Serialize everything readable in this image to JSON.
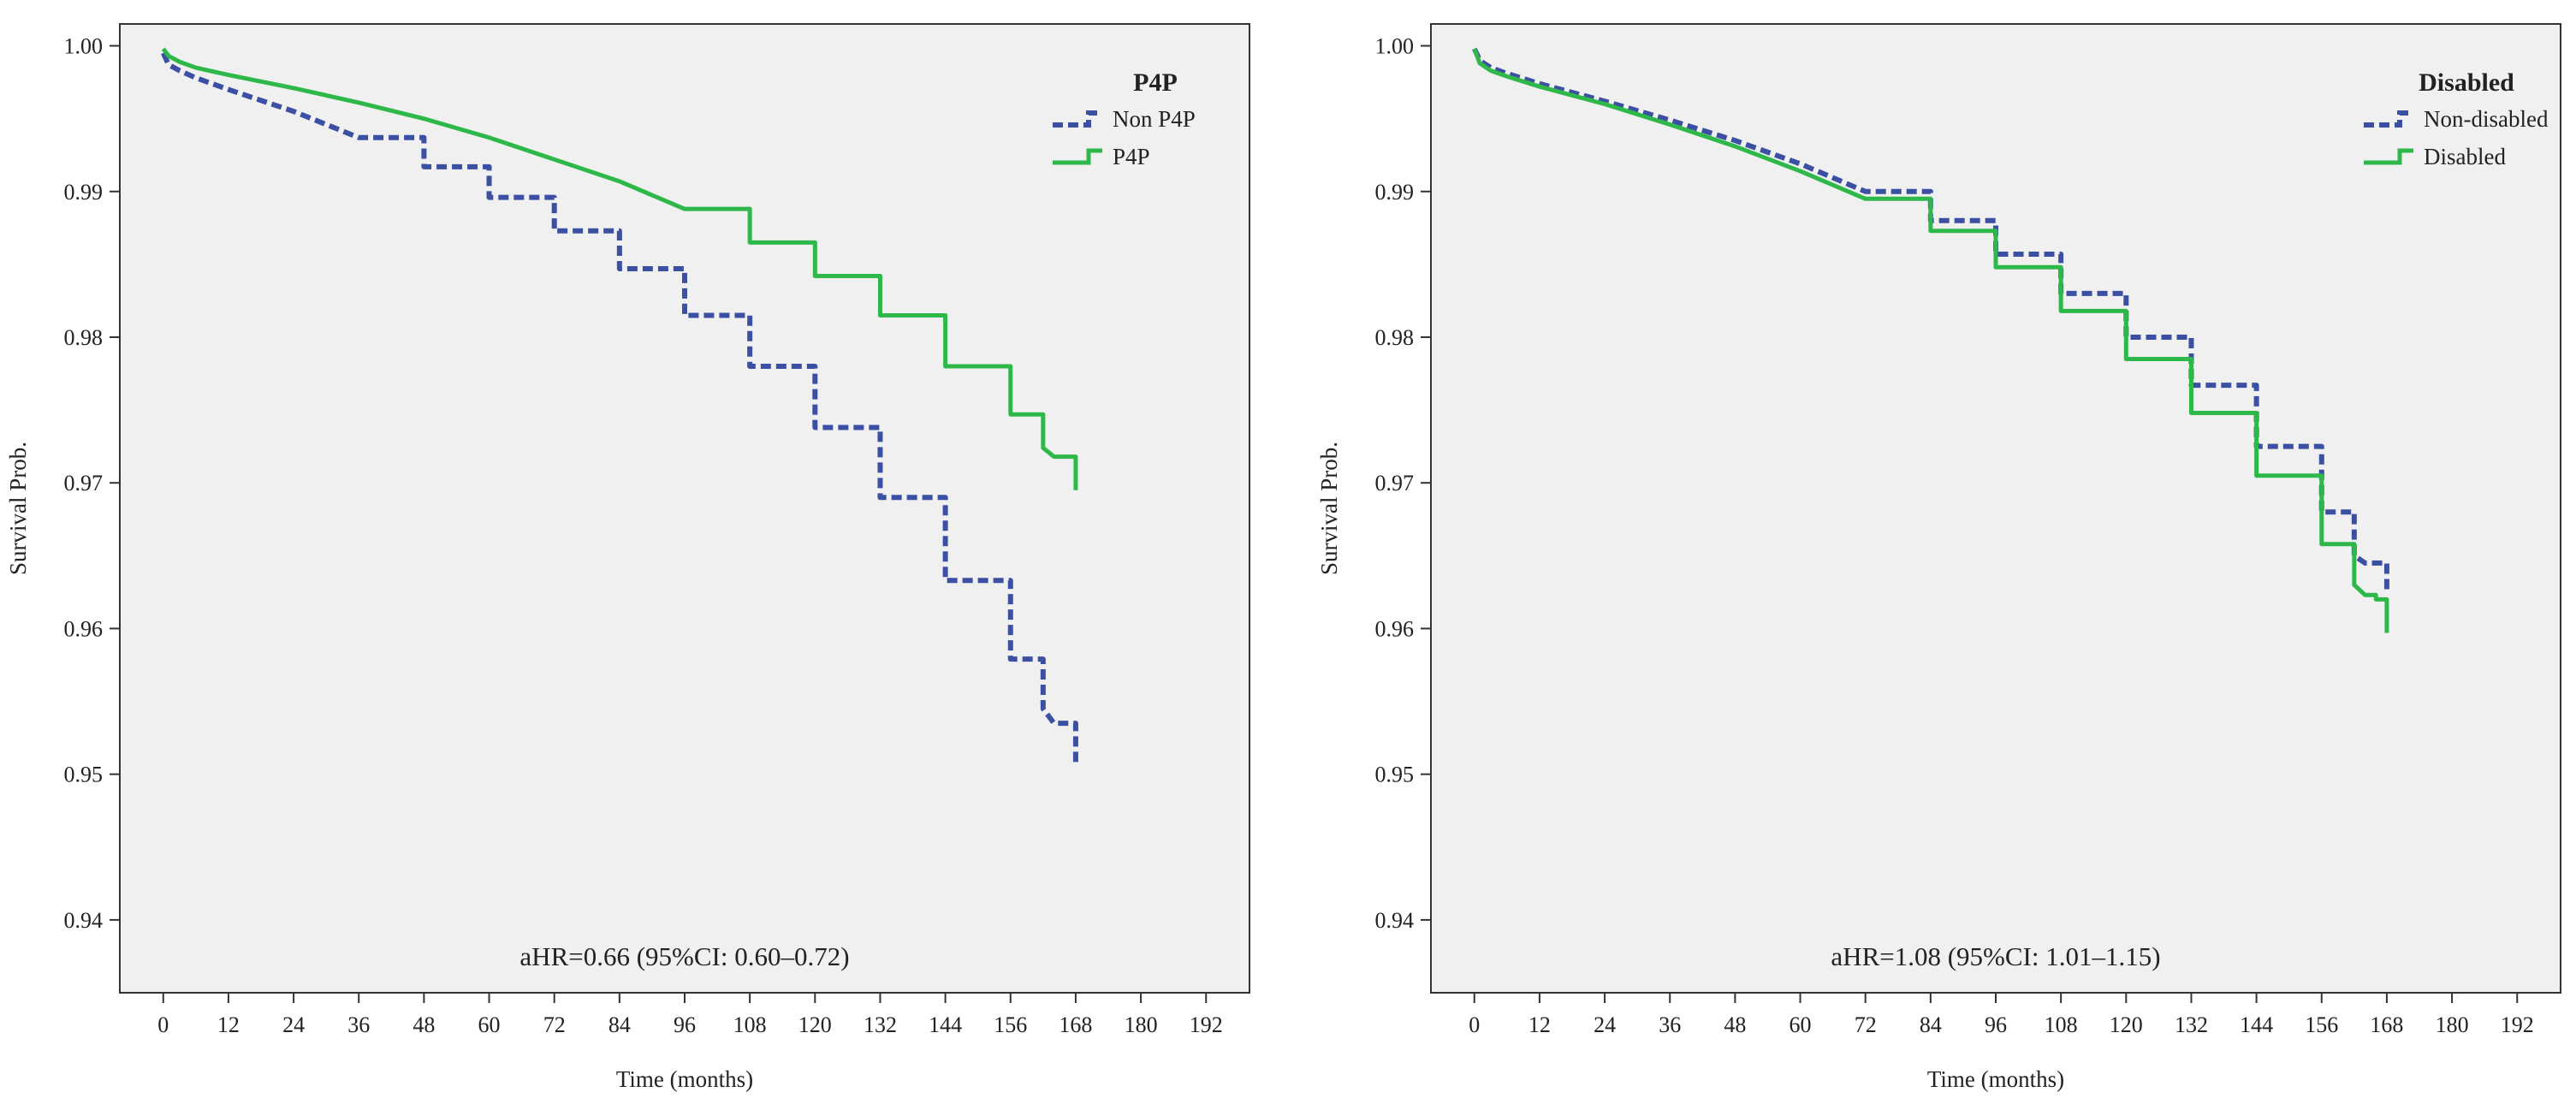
{
  "chart_data": [
    {
      "type": "line",
      "title": "",
      "xlabel": "Time (months)",
      "ylabel": "Survival Prob.",
      "xlim": [
        -8,
        200
      ],
      "ylim": [
        0.935,
        1.0015
      ],
      "xticks": [
        0,
        12,
        24,
        36,
        48,
        60,
        72,
        84,
        96,
        108,
        120,
        132,
        144,
        156,
        168,
        180,
        192
      ],
      "yticks": [
        0.94,
        0.95,
        0.96,
        0.97,
        0.98,
        0.99,
        1.0
      ],
      "ytick_labels": [
        "0.94",
        "0.95",
        "0.96",
        "0.97",
        "0.98",
        "0.99",
        "1.00"
      ],
      "grid": false,
      "legend_title": "P4P",
      "legend_position": "top-right",
      "annotation": "aHR=0.66 (95%CI: 0.60–0.72)",
      "series": [
        {
          "name": "Non P4P",
          "color": "#3b4fa3",
          "style": "dashed",
          "x": [
            0,
            1,
            3,
            6,
            12,
            24,
            36,
            48,
            60,
            72,
            84,
            96,
            108,
            120,
            132,
            144,
            156,
            162,
            164,
            166,
            168
          ],
          "y": [
            0.9995,
            0.9987,
            0.9983,
            0.9978,
            0.997,
            0.9955,
            0.9937,
            0.9917,
            0.9896,
            0.9873,
            0.9847,
            0.9815,
            0.978,
            0.9738,
            0.969,
            0.9633,
            0.9579,
            0.9545,
            0.9535,
            0.9535,
            0.9505
          ]
        },
        {
          "name": "P4P",
          "color": "#2eb84a",
          "style": "solid",
          "x": [
            0,
            1,
            3,
            6,
            12,
            24,
            36,
            48,
            60,
            72,
            84,
            96,
            108,
            120,
            132,
            144,
            156,
            162,
            164,
            166,
            168
          ],
          "y": [
            0.9998,
            0.9993,
            0.9989,
            0.9985,
            0.998,
            0.9971,
            0.9961,
            0.995,
            0.9937,
            0.9922,
            0.9907,
            0.9888,
            0.9865,
            0.9842,
            0.9815,
            0.978,
            0.9747,
            0.9724,
            0.9718,
            0.9718,
            0.9695
          ]
        }
      ]
    },
    {
      "type": "line",
      "title": "",
      "xlabel": "Time (months)",
      "ylabel": "Survival Prob.",
      "xlim": [
        -8,
        200
      ],
      "ylim": [
        0.935,
        1.0015
      ],
      "xticks": [
        0,
        12,
        24,
        36,
        48,
        60,
        72,
        84,
        96,
        108,
        120,
        132,
        144,
        156,
        168,
        180,
        192
      ],
      "yticks": [
        0.94,
        0.95,
        0.96,
        0.97,
        0.98,
        0.99,
        1.0
      ],
      "ytick_labels": [
        "0.94",
        "0.95",
        "0.96",
        "0.97",
        "0.98",
        "0.99",
        "1.00"
      ],
      "grid": false,
      "legend_title": "Disabled",
      "legend_position": "top-right",
      "annotation": "aHR=1.08 (95%CI: 1.01–1.15)",
      "series": [
        {
          "name": "Non-disabled",
          "color": "#3b4fa3",
          "style": "dashed",
          "x": [
            0,
            1,
            3,
            6,
            12,
            24,
            36,
            48,
            60,
            72,
            84,
            96,
            108,
            120,
            132,
            144,
            156,
            162,
            164,
            166,
            168
          ],
          "y": [
            0.9998,
            0.999,
            0.9985,
            0.9981,
            0.9974,
            0.9962,
            0.9949,
            0.9935,
            0.9919,
            0.99,
            0.988,
            0.9857,
            0.983,
            0.98,
            0.9767,
            0.9725,
            0.968,
            0.965,
            0.9645,
            0.9645,
            0.9625
          ]
        },
        {
          "name": "Disabled",
          "color": "#2eb84a",
          "style": "solid",
          "x": [
            0,
            1,
            3,
            6,
            12,
            24,
            36,
            48,
            60,
            72,
            84,
            96,
            108,
            120,
            132,
            144,
            156,
            162,
            164,
            166,
            168
          ],
          "y": [
            0.9998,
            0.9988,
            0.9983,
            0.9979,
            0.9972,
            0.996,
            0.9946,
            0.9931,
            0.9914,
            0.9895,
            0.9873,
            0.9848,
            0.9818,
            0.9785,
            0.9748,
            0.9705,
            0.9658,
            0.963,
            0.9623,
            0.962,
            0.9597
          ]
        }
      ]
    }
  ]
}
